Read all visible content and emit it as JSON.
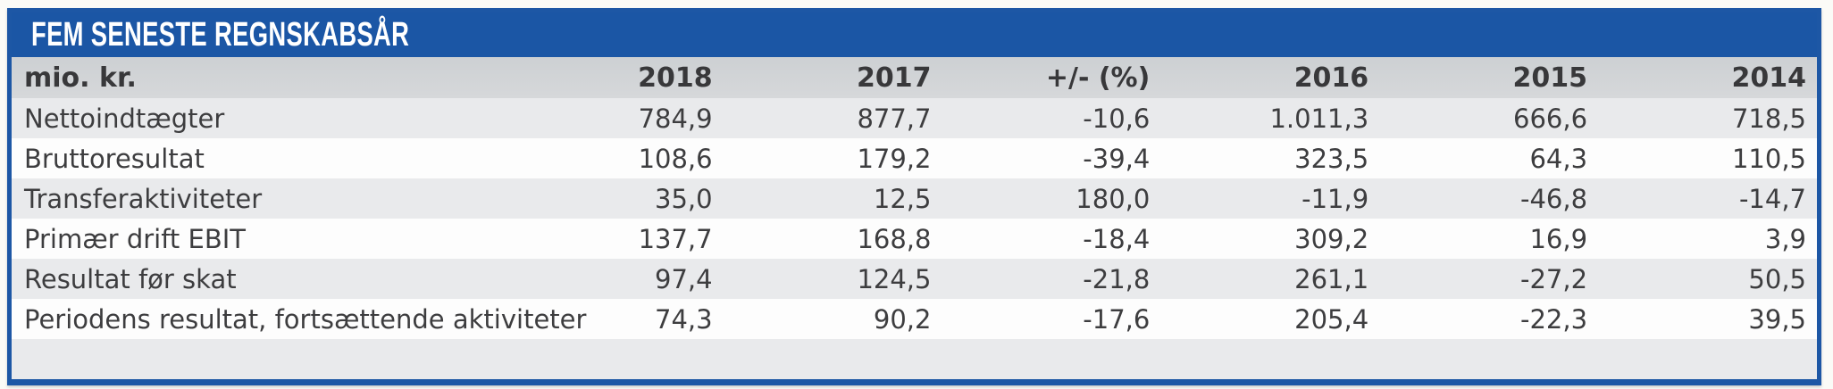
{
  "panel": {
    "title": "FEM SENESTE REGNSKABSÅR",
    "colors": {
      "accent_blue": "#1b56a5",
      "header_gray": "#d1d3d6",
      "row_alt_gray": "#e9eaec",
      "row_white": "#fdfdfd",
      "text_dark": "#3b3b3d"
    }
  },
  "table": {
    "unit_header": "mio. kr.",
    "year_headers": [
      "2018",
      "2017",
      "+/- (%)",
      "2016",
      "2015",
      "2014"
    ],
    "rows": [
      {
        "label": "Nettoindtægter",
        "values": [
          "784,9",
          "877,7",
          "-10,6",
          "1.011,3",
          "666,6",
          "718,5"
        ]
      },
      {
        "label": "Bruttoresultat",
        "values": [
          "108,6",
          "179,2",
          "-39,4",
          "323,5",
          "64,3",
          "110,5"
        ]
      },
      {
        "label": "Transferaktiviteter",
        "values": [
          "35,0",
          "12,5",
          "180,0",
          "-11,9",
          "-46,8",
          "-14,7"
        ]
      },
      {
        "label": "Primær drift EBIT",
        "values": [
          "137,7",
          "168,8",
          "-18,4",
          "309,2",
          "16,9",
          "3,9"
        ]
      },
      {
        "label": "Resultat før skat",
        "values": [
          "97,4",
          "124,5",
          "-21,8",
          "261,1",
          "-27,2",
          "50,5"
        ]
      },
      {
        "label": "Periodens resultat, fortsættende aktiviteter",
        "values": [
          "74,3",
          "90,2",
          "-17,6",
          "205,4",
          "-22,3",
          "39,5"
        ]
      }
    ]
  }
}
